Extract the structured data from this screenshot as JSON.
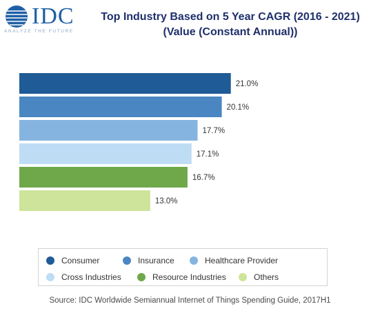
{
  "logo": {
    "name": "IDC",
    "tagline": "ANALYZE THE FUTURE"
  },
  "title": {
    "line1": "Top Industry Based on 5 Year CAGR (2016 - 2021)",
    "line2": "(Value (Constant Annual))"
  },
  "chart_data": {
    "type": "bar",
    "orientation": "horizontal",
    "categories": [
      "Consumer",
      "Insurance",
      "Healthcare Provider",
      "Cross Industries",
      "Resource Industries",
      "Others"
    ],
    "values": [
      21.0,
      20.1,
      17.7,
      17.1,
      16.7,
      13.0
    ],
    "value_labels": [
      "21.0%",
      "20.1%",
      "17.7%",
      "17.1%",
      "16.7%",
      "13.0%"
    ],
    "colors": [
      "#1f5b96",
      "#4a86c2",
      "#86b4e0",
      "#bfdcf5",
      "#6ea84a",
      "#cde49a"
    ],
    "xlim": [
      0,
      21.5
    ],
    "grid": false,
    "legend_placement": "bottom"
  },
  "source": "Source: IDC Worldwide Semiannual Internet of Things Spending Guide, 2017H1"
}
